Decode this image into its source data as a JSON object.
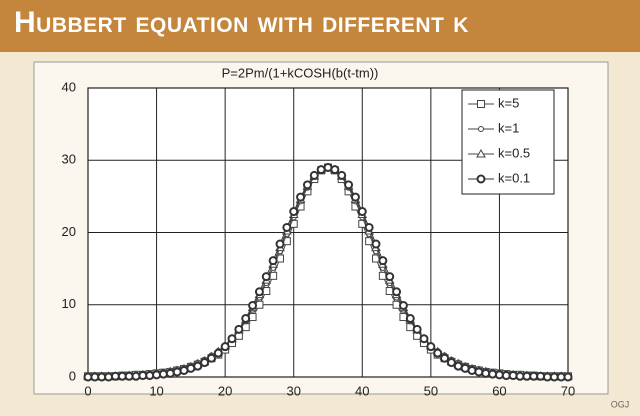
{
  "chart_data": {
    "type": "line",
    "title": "Hubbert equation with different k",
    "subtitle": "P=2Pm/(1+kCOSH(b(t-tm))",
    "source": "OGJ",
    "x": [
      0,
      1,
      2,
      3,
      4,
      5,
      6,
      7,
      8,
      9,
      10,
      11,
      12,
      13,
      14,
      15,
      16,
      17,
      18,
      19,
      20,
      21,
      22,
      23,
      24,
      25,
      26,
      27,
      28,
      29,
      30,
      31,
      32,
      33,
      34,
      35,
      36,
      37,
      38,
      39,
      40,
      41,
      42,
      43,
      44,
      45,
      46,
      47,
      48,
      49,
      50,
      51,
      52,
      53,
      54,
      55,
      56,
      57,
      58,
      59,
      60,
      61,
      62,
      63,
      64,
      65,
      66,
      67,
      68,
      69,
      70
    ],
    "xlim": [
      0,
      70
    ],
    "xticks": [
      0,
      10,
      20,
      30,
      40,
      50,
      60,
      70
    ],
    "ylim": [
      0,
      40
    ],
    "yticks": [
      0,
      10,
      20,
      30,
      40
    ],
    "grid": true,
    "legend": "top-right",
    "series": [
      {
        "name": "k=5",
        "color": "#444444",
        "marker": "square",
        "values": [
          0.1,
          0.1,
          0.1,
          0.1,
          0.1,
          0.2,
          0.2,
          0.3,
          0.3,
          0.4,
          0.5,
          0.6,
          0.7,
          0.9,
          1.1,
          1.4,
          1.7,
          2.1,
          2.6,
          3.1,
          3.8,
          4.7,
          5.7,
          6.9,
          8.3,
          10.0,
          11.9,
          14.0,
          16.4,
          18.8,
          21.2,
          23.6,
          25.7,
          27.4,
          28.6,
          29.0,
          28.6,
          27.4,
          25.7,
          23.6,
          21.2,
          18.8,
          16.4,
          14.0,
          11.9,
          10.0,
          8.3,
          6.9,
          5.7,
          4.7,
          3.8,
          3.1,
          2.6,
          2.1,
          1.7,
          1.4,
          1.1,
          0.9,
          0.7,
          0.6,
          0.5,
          0.4,
          0.3,
          0.3,
          0.2,
          0.2,
          0.1,
          0.1,
          0.1,
          0.1,
          0.1
        ]
      },
      {
        "name": "k=1",
        "color": "#444444",
        "marker": "dot",
        "values": [
          0.1,
          0.1,
          0.1,
          0.1,
          0.2,
          0.2,
          0.2,
          0.3,
          0.4,
          0.5,
          0.6,
          0.7,
          0.9,
          1.1,
          1.3,
          1.6,
          2.0,
          2.4,
          3.0,
          3.6,
          4.4,
          5.3,
          6.4,
          7.7,
          9.3,
          11.0,
          13.0,
          15.1,
          17.4,
          19.8,
          22.1,
          24.3,
          26.2,
          27.7,
          28.7,
          29.0,
          28.7,
          27.7,
          26.2,
          24.3,
          22.1,
          19.8,
          17.4,
          15.1,
          13.0,
          11.0,
          9.3,
          7.7,
          6.4,
          5.3,
          4.4,
          3.6,
          3.0,
          2.4,
          2.0,
          1.6,
          1.3,
          1.1,
          0.9,
          0.7,
          0.6,
          0.5,
          0.4,
          0.3,
          0.2,
          0.2,
          0.2,
          0.1,
          0.1,
          0.1,
          0.1
        ]
      },
      {
        "name": "k=0.5",
        "color": "#444444",
        "marker": "triangle",
        "values": [
          0.1,
          0.1,
          0.1,
          0.1,
          0.1,
          0.1,
          0.2,
          0.2,
          0.3,
          0.3,
          0.4,
          0.5,
          0.7,
          0.9,
          1.1,
          1.4,
          1.8,
          2.2,
          2.8,
          3.5,
          4.3,
          5.3,
          6.5,
          7.9,
          9.6,
          11.4,
          13.4,
          15.6,
          17.9,
          20.2,
          22.5,
          24.6,
          26.4,
          27.8,
          28.7,
          29.0,
          28.7,
          27.8,
          26.4,
          24.6,
          22.5,
          20.2,
          17.9,
          15.6,
          13.4,
          11.4,
          9.6,
          7.9,
          6.5,
          5.3,
          4.3,
          3.5,
          2.8,
          2.2,
          1.8,
          1.4,
          1.1,
          0.9,
          0.7,
          0.5,
          0.4,
          0.3,
          0.3,
          0.2,
          0.2,
          0.1,
          0.1,
          0.1,
          0.1,
          0.1,
          0.1
        ]
      },
      {
        "name": "k=0.1",
        "color": "#333333",
        "marker": "circle",
        "values": [
          0,
          0,
          0,
          0,
          0.1,
          0.1,
          0.1,
          0.1,
          0.2,
          0.2,
          0.3,
          0.4,
          0.5,
          0.7,
          0.9,
          1.2,
          1.5,
          2.0,
          2.6,
          3.3,
          4.2,
          5.3,
          6.6,
          8.1,
          9.9,
          11.8,
          13.9,
          16.1,
          18.4,
          20.7,
          22.9,
          24.9,
          26.6,
          27.9,
          28.7,
          29.0,
          28.7,
          27.9,
          26.6,
          24.9,
          22.9,
          20.7,
          18.4,
          16.1,
          13.9,
          11.8,
          9.9,
          8.1,
          6.6,
          5.3,
          4.2,
          3.3,
          2.6,
          2.0,
          1.5,
          1.2,
          0.9,
          0.7,
          0.5,
          0.4,
          0.3,
          0.2,
          0.2,
          0.1,
          0.1,
          0.1,
          0.1,
          0,
          0,
          0,
          0
        ]
      }
    ]
  }
}
